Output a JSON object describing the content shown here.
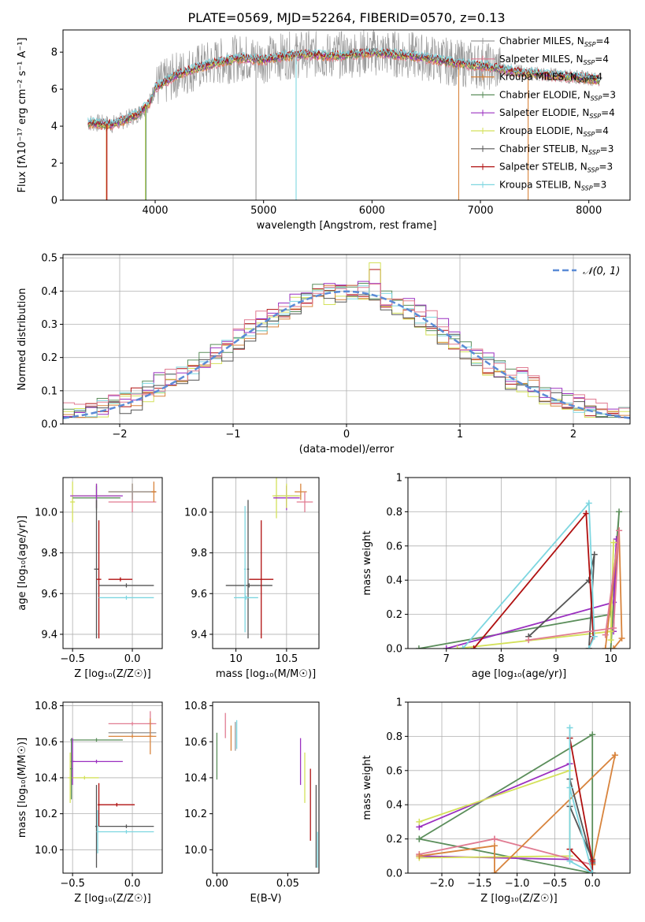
{
  "figure": {
    "title": "PLATE=0569, MJD=52264, FIBERID=0570, z=0.13"
  },
  "colors": {
    "Chabrier MILES": "#9a9a9a",
    "Salpeter MILES": "#e07b91",
    "Kroupa MILES": "#d8843d",
    "Chabrier ELODIE": "#5b8e5b",
    "Salpeter ELODIE": "#9b30c0",
    "Kroupa ELODIE": "#d4e15a",
    "Chabrier STELIB": "#555555",
    "Salpeter STELIB": "#b01010",
    "Kroupa STELIB": "#7dd6e0",
    "normal": "#5b8bd6"
  },
  "chart_data": [
    {
      "id": "spectrum",
      "type": "line",
      "title": "PLATE=0569, MJD=52264, FIBERID=0570, z=0.13",
      "xlabel": "wavelength [Angstrom, rest frame]",
      "ylabel": "Flux [fλ10⁻¹⁷ erg cm⁻² s⁻¹ A⁻¹]",
      "xlim": [
        3150,
        8380
      ],
      "ylim": [
        0,
        9.2
      ],
      "xticks": [
        4000,
        5000,
        6000,
        7000,
        8000
      ],
      "yticks": [
        0,
        2,
        4,
        6,
        8
      ],
      "grid": false,
      "legend_position": "right",
      "legend": [
        {
          "label": "Chabrier MILES",
          "nssp": "4",
          "model": "Chabrier MILES"
        },
        {
          "label": "Salpeter MILES",
          "nssp": "4",
          "model": "Salpeter MILES"
        },
        {
          "label": "Kroupa MILES",
          "nssp": "4",
          "model": "Kroupa MILES"
        },
        {
          "label": "Chabrier ELODIE",
          "nssp": "3",
          "model": "Chabrier ELODIE"
        },
        {
          "label": "Salpeter ELODIE",
          "nssp": "4",
          "model": "Salpeter ELODIE"
        },
        {
          "label": "Kroupa ELODIE",
          "nssp": "4",
          "model": "Kroupa ELODIE"
        },
        {
          "label": "Chabrier STELIB",
          "nssp": "3",
          "model": "Chabrier STELIB"
        },
        {
          "label": "Salpeter STELIB",
          "nssp": "3",
          "model": "Salpeter STELIB"
        },
        {
          "label": "Kroupa STELIB",
          "nssp": "3",
          "model": "Kroupa STELIB"
        }
      ],
      "continuum": {
        "x": [
          3380,
          3600,
          3700,
          3850,
          3950,
          4000,
          4100,
          4200,
          4400,
          4600,
          4800,
          5000,
          5200,
          5400,
          5600,
          5800,
          6000,
          6200,
          6400,
          6600,
          6800,
          7000,
          7200,
          7400,
          7600,
          7800,
          8000,
          8100
        ],
        "y": [
          4.2,
          4.1,
          4.3,
          4.7,
          5.3,
          6.1,
          6.4,
          6.8,
          7.2,
          7.5,
          7.7,
          7.6,
          7.8,
          7.9,
          7.8,
          7.9,
          8.0,
          7.9,
          7.8,
          7.6,
          7.4,
          7.3,
          7.1,
          6.9,
          6.8,
          6.7,
          6.6,
          6.5
        ]
      },
      "drops": [
        {
          "model": "Kroupa MILES",
          "x": 3550,
          "y": 0
        },
        {
          "model": "Salpeter STELIB",
          "x": 3555,
          "y": 0
        },
        {
          "model": "Kroupa ELODIE",
          "x": 3910,
          "y": 0
        },
        {
          "model": "Chabrier ELODIE",
          "x": 3915,
          "y": 0
        },
        {
          "model": "Chabrier MILES",
          "x": 4930,
          "y": 0
        },
        {
          "model": "Kroupa STELIB",
          "x": 5300,
          "y": 0
        },
        {
          "model": "Kroupa MILES",
          "x": 6800,
          "y": 0
        },
        {
          "model": "Kroupa MILES",
          "x": 7440,
          "y": 0
        }
      ]
    },
    {
      "id": "residuals",
      "type": "histogram",
      "xlabel": "(data-model)/error",
      "ylabel": "Normed distribution",
      "xlim": [
        -2.5,
        2.5
      ],
      "ylim": [
        0,
        0.51
      ],
      "xticks": [
        -2,
        -1,
        0,
        1,
        2
      ],
      "yticks": [
        0.0,
        0.1,
        0.2,
        0.3,
        0.4,
        0.5
      ],
      "grid": true,
      "legend_position": "top-right",
      "legend": [
        {
          "label": "𝒩(0, 1)",
          "model": "normal",
          "style": "dashed"
        }
      ],
      "bin_width": 0.1,
      "bins_start": -2.5,
      "series": [
        {
          "model": "Salpeter STELIB",
          "offset": 0.0
        },
        {
          "model": "Chabrier ELODIE",
          "offset": 0.006
        },
        {
          "model": "Kroupa ELODIE",
          "offset": -0.008
        },
        {
          "model": "Salpeter ELODIE",
          "offset": 0.01
        },
        {
          "model": "Kroupa MILES",
          "offset": -0.004
        },
        {
          "model": "Kroupa STELIB",
          "offset": 0.004
        },
        {
          "model": "Chabrier STELIB",
          "offset": -0.012
        },
        {
          "model": "Salpeter MILES",
          "offset": 0.012
        }
      ],
      "peak_bin": {
        "x": 0.25,
        "y": 0.485
      }
    },
    {
      "id": "age_vs_Z",
      "type": "errorbar",
      "xlabel": "Z [log₁₀(Z/Z☉)]",
      "ylabel": "age  [log₁₀(age/yr)]",
      "xlim": [
        -0.58,
        0.25
      ],
      "ylim": [
        9.33,
        10.17
      ],
      "xticks": [
        -0.5,
        0.0
      ],
      "xticklabels": [
        "−0.5",
        "0.0"
      ],
      "yticks": [
        9.4,
        9.6,
        9.8,
        10.0
      ],
      "grid": true,
      "points": [
        {
          "model": "Kroupa ELODIE",
          "x": -0.3,
          "y": 10.08,
          "xerr": 0.2,
          "yerr": 0.06
        },
        {
          "model": "Kroupa ELODIE",
          "x": -0.5,
          "y": 10.05,
          "xerr": 0.02,
          "yerr": 0.1
        },
        {
          "model": "Chabrier ELODIE",
          "x": -0.3,
          "y": 10.07,
          "xerr": 0.2,
          "yerr": 0.06
        },
        {
          "model": "Salpeter ELODIE",
          "x": -0.3,
          "y": 10.08,
          "xerr": 0.22,
          "yerr": 0.06
        },
        {
          "model": "Kroupa MILES",
          "x": 0.0,
          "y": 10.1,
          "xerr": 0.2,
          "yerr": 0.04
        },
        {
          "model": "Salpeter MILES",
          "x": 0.0,
          "y": 10.05,
          "xerr": 0.2,
          "yerr": 0.05
        },
        {
          "model": "Chabrier MILES",
          "x": 0.0,
          "y": 10.1,
          "xerr": 0.2,
          "yerr": 0.04
        },
        {
          "model": "Kroupa MILES",
          "x": 0.18,
          "y": 10.1,
          "xerr": 0.02,
          "yerr": 0.05
        },
        {
          "model": "Chabrier STELIB",
          "x": -0.3,
          "y": 9.72,
          "xerr": 0.02,
          "yerr": 0.34
        },
        {
          "model": "Salpeter STELIB",
          "x": -0.28,
          "y": 9.67,
          "xerr": 0.02,
          "yerr": 0.29
        },
        {
          "model": "Salpeter STELIB",
          "x": -0.1,
          "y": 9.67,
          "xerr": 0.1,
          "yerr": 0.01
        },
        {
          "model": "Chabrier STELIB",
          "x": -0.05,
          "y": 9.64,
          "xerr": 0.23,
          "yerr": 0.01
        },
        {
          "model": "Kroupa STELIB",
          "x": -0.05,
          "y": 9.58,
          "xerr": 0.23,
          "yerr": 0.01
        }
      ]
    },
    {
      "id": "age_vs_mass",
      "type": "errorbar",
      "xlabel": "mass [log₁₀(M/M☉)]",
      "ylabel": "",
      "xlim": [
        9.77,
        10.82
      ],
      "ylim": [
        9.33,
        10.17
      ],
      "xticks": [
        10.0,
        10.5
      ],
      "yticks": [
        9.4,
        9.6,
        9.8,
        10.0
      ],
      "grid": true,
      "points": [
        {
          "model": "Kroupa ELODIE",
          "x": 10.4,
          "y": 10.07,
          "xerr": 0.03,
          "yerr": 0.1
        },
        {
          "model": "Chabrier MILES",
          "x": 10.5,
          "y": 10.08,
          "xerr": 0.12,
          "yerr": 0.05
        },
        {
          "model": "Salpeter ELODIE",
          "x": 10.5,
          "y": 10.07,
          "xerr": 0.13,
          "yerr": 0.06
        },
        {
          "model": "Kroupa ELODIE",
          "x": 10.5,
          "y": 10.08,
          "xerr": 0.14,
          "yerr": 0.06
        },
        {
          "model": "Kroupa MILES",
          "x": 10.64,
          "y": 10.1,
          "xerr": 0.06,
          "yerr": 0.04
        },
        {
          "model": "Salpeter MILES",
          "x": 10.68,
          "y": 10.05,
          "xerr": 0.08,
          "yerr": 0.05
        },
        {
          "model": "Chabrier STELIB",
          "x": 10.13,
          "y": 9.64,
          "xerr": 0.23,
          "yerr": 0.01
        },
        {
          "model": "Chabrier STELIB",
          "x": 10.12,
          "y": 9.72,
          "xerr": 0.01,
          "yerr": 0.34
        },
        {
          "model": "Salpeter STELIB",
          "x": 10.25,
          "y": 9.67,
          "xerr": 0.12,
          "yerr": 0.29
        },
        {
          "model": "Kroupa STELIB",
          "x": 10.1,
          "y": 9.58,
          "xerr": 0.12,
          "yerr": 0.01
        },
        {
          "model": "Kroupa STELIB",
          "x": 10.09,
          "y": 9.72,
          "xerr": 0.01,
          "yerr": 0.31
        }
      ]
    },
    {
      "id": "weight_vs_age",
      "type": "line",
      "xlabel": "age  [log₁₀(age/yr)]",
      "ylabel": "mass weight",
      "xlim": [
        6.3,
        10.35
      ],
      "ylim": [
        0,
        1
      ],
      "xticks": [
        7,
        8,
        9,
        10
      ],
      "yticks": [
        0.0,
        0.2,
        0.4,
        0.6,
        0.8,
        1.0
      ],
      "grid": true,
      "series": [
        {
          "model": "Chabrier ELODIE",
          "x": [
            6.5,
            10.0,
            10.15,
            10.0
          ],
          "y": [
            0.0,
            0.2,
            0.8,
            0.0
          ]
        },
        {
          "model": "Salpeter ELODIE",
          "x": [
            7.0,
            10.05,
            10.1,
            10.05
          ],
          "y": [
            0.0,
            0.27,
            0.64,
            0.1
          ]
        },
        {
          "model": "Kroupa ELODIE",
          "x": [
            7.2,
            10.0,
            10.05,
            10.0
          ],
          "y": [
            0.0,
            0.1,
            0.62,
            0.05
          ]
        },
        {
          "model": "Chabrier STELIB",
          "x": [
            8.5,
            9.6,
            9.7,
            9.6
          ],
          "y": [
            0.07,
            0.4,
            0.55,
            0.0
          ]
        },
        {
          "model": "Salpeter STELIB",
          "x": [
            7.5,
            9.55,
            9.68,
            9.6
          ],
          "y": [
            0.0,
            0.79,
            0.07,
            0.0
          ]
        },
        {
          "model": "Kroupa STELIB",
          "x": [
            7.3,
            9.6,
            9.7,
            9.6
          ],
          "y": [
            0.0,
            0.85,
            0.07,
            0.0
          ]
        },
        {
          "model": "Kroupa MILES",
          "x": [
            9.9,
            10.15,
            10.2,
            10.05
          ],
          "y": [
            0.0,
            0.69,
            0.06,
            0.0
          ]
        },
        {
          "model": "Salpeter MILES",
          "x": [
            8.5,
            10.05,
            10.15,
            9.9
          ],
          "y": [
            0.05,
            0.12,
            0.69,
            0.08
          ]
        }
      ]
    },
    {
      "id": "mass_vs_Z",
      "type": "errorbar",
      "xlabel": "Z [log₁₀(Z/Z☉)]",
      "ylabel": "mass [log₁₀(M/M☉)]",
      "xlim": [
        -0.58,
        0.25
      ],
      "ylim": [
        9.87,
        10.82
      ],
      "xticks": [
        -0.5,
        0.0
      ],
      "xticklabels": [
        "−0.5",
        "0.0"
      ],
      "yticks": [
        10.0,
        10.2,
        10.4,
        10.6,
        10.8
      ],
      "grid": true,
      "points": [
        {
          "model": "Salpeter MILES",
          "x": 0.0,
          "y": 10.7,
          "xerr": 0.2,
          "yerr": 0.01
        },
        {
          "model": "Salpeter MILES",
          "x": 0.15,
          "y": 10.7,
          "xerr": 0.02,
          "yerr": 0.07
        },
        {
          "model": "Chabrier MILES",
          "x": 0.0,
          "y": 10.65,
          "xerr": 0.2,
          "yerr": 0.01
        },
        {
          "model": "Kroupa MILES",
          "x": 0.0,
          "y": 10.63,
          "xerr": 0.2,
          "yerr": 0.01
        },
        {
          "model": "Kroupa MILES",
          "x": 0.15,
          "y": 10.63,
          "xerr": 0.02,
          "yerr": 0.1
        },
        {
          "model": "Chabrier ELODIE",
          "x": -0.3,
          "y": 10.61,
          "xerr": 0.22,
          "yerr": 0.01
        },
        {
          "model": "Salpeter ELODIE",
          "x": -0.3,
          "y": 10.49,
          "xerr": 0.22,
          "yerr": 0.01
        },
        {
          "model": "Kroupa ELODIE",
          "x": -0.4,
          "y": 10.4,
          "xerr": 0.12,
          "yerr": 0.01
        },
        {
          "model": "Salpeter ELODIE",
          "x": -0.5,
          "y": 10.49,
          "xerr": 0.02,
          "yerr": 0.13
        },
        {
          "model": "Kroupa ELODIE",
          "x": -0.52,
          "y": 10.4,
          "xerr": 0.02,
          "yerr": 0.14
        },
        {
          "model": "Chabrier ELODIE",
          "x": -0.51,
          "y": 10.45,
          "xerr": 0.01,
          "yerr": 0.17
        },
        {
          "model": "Salpeter STELIB",
          "x": -0.13,
          "y": 10.25,
          "xerr": 0.15,
          "yerr": 0.01
        },
        {
          "model": "Salpeter STELIB",
          "x": -0.28,
          "y": 10.25,
          "xerr": 0.01,
          "yerr": 0.12
        },
        {
          "model": "Chabrier STELIB",
          "x": -0.05,
          "y": 10.13,
          "xerr": 0.23,
          "yerr": 0.01
        },
        {
          "model": "Chabrier STELIB",
          "x": -0.3,
          "y": 10.13,
          "xerr": 0.01,
          "yerr": 0.23
        },
        {
          "model": "Kroupa STELIB",
          "x": -0.05,
          "y": 10.1,
          "xerr": 0.23,
          "yerr": 0.01
        },
        {
          "model": "Kroupa STELIB",
          "x": -0.29,
          "y": 10.1,
          "xerr": 0.01,
          "yerr": 0.12
        }
      ]
    },
    {
      "id": "mass_vs_ebv",
      "type": "errorbar",
      "xlabel": "E(B-V)",
      "ylabel": "",
      "xlim": [
        -0.003,
        0.072
      ],
      "ylim": [
        9.87,
        10.82
      ],
      "xticks": [
        0.0,
        0.05
      ],
      "xticklabels": [
        "0.00",
        "0.05"
      ],
      "yticks": [
        10.0,
        10.2,
        10.4,
        10.6,
        10.8
      ],
      "grid": false,
      "points": [
        {
          "model": "Chabrier ELODIE",
          "x": 0.0,
          "y": 10.52,
          "xerr": 0,
          "yerr": 0.13
        },
        {
          "model": "Salpeter MILES",
          "x": 0.006,
          "y": 10.69,
          "xerr": 0,
          "yerr": 0.07
        },
        {
          "model": "Kroupa MILES",
          "x": 0.01,
          "y": 10.62,
          "xerr": 0,
          "yerr": 0.07
        },
        {
          "model": "Chabrier MILES",
          "x": 0.013,
          "y": 10.63,
          "xerr": 0,
          "yerr": 0.08
        },
        {
          "model": "Kroupa STELIB",
          "x": 0.014,
          "y": 10.64,
          "xerr": 0,
          "yerr": 0.08
        },
        {
          "model": "Salpeter ELODIE",
          "x": 0.059,
          "y": 10.49,
          "xerr": 0,
          "yerr": 0.13
        },
        {
          "model": "Kroupa ELODIE",
          "x": 0.062,
          "y": 10.4,
          "xerr": 0,
          "yerr": 0.14
        },
        {
          "model": "Salpeter STELIB",
          "x": 0.066,
          "y": 10.25,
          "xerr": 0,
          "yerr": 0.2
        },
        {
          "model": "Chabrier STELIB",
          "x": 0.07,
          "y": 10.13,
          "xerr": 0,
          "yerr": 0.23
        },
        {
          "model": "Kroupa STELIB",
          "x": 0.071,
          "y": 10.0,
          "xerr": 0,
          "yerr": 0.1
        }
      ]
    },
    {
      "id": "weight_vs_Z",
      "type": "line",
      "xlabel": "Z [log₁₀(Z/Z☉)]",
      "ylabel": "mass weight",
      "xlim": [
        -2.45,
        0.5
      ],
      "ylim": [
        0,
        1
      ],
      "xticks": [
        -2.0,
        -1.5,
        -1.0,
        -0.5,
        0.0
      ],
      "xticklabels": [
        "−2.0",
        "−1.5",
        "−1.0",
        "−0.5",
        "0.0"
      ],
      "yticks": [
        0.0,
        0.2,
        0.4,
        0.6,
        0.8,
        1.0
      ],
      "grid": true,
      "series": [
        {
          "model": "Chabrier ELODIE",
          "x": [
            -2.3,
            0.0,
            0.0,
            -2.3
          ],
          "y": [
            0.2,
            0.81,
            0.0,
            0.2
          ]
        },
        {
          "model": "Salpeter ELODIE",
          "x": [
            -2.3,
            -0.3,
            -0.3,
            -2.3
          ],
          "y": [
            0.27,
            0.64,
            0.08,
            0.1
          ]
        },
        {
          "model": "Kroupa ELODIE",
          "x": [
            -2.3,
            -0.3,
            -0.3,
            -2.3
          ],
          "y": [
            0.3,
            0.6,
            0.1,
            0.09
          ]
        },
        {
          "model": "Salpeter MILES",
          "x": [
            -2.3,
            -1.3,
            0.0,
            -1.3,
            -2.3
          ],
          "y": [
            0.11,
            0.2,
            0.05,
            0.2,
            0.11
          ]
        },
        {
          "model": "Kroupa MILES",
          "x": [
            -2.3,
            -1.3,
            -1.3,
            0.3,
            0.0,
            0.3
          ],
          "y": [
            0.1,
            0.16,
            0.0,
            0.69,
            0.05,
            0.69
          ]
        },
        {
          "model": "Chabrier STELIB",
          "x": [
            -0.3,
            0.0,
            0.0,
            -0.3
          ],
          "y": [
            0.55,
            0.06,
            0.08,
            0.39
          ]
        },
        {
          "model": "Salpeter STELIB",
          "x": [
            -0.3,
            0.0,
            0.0,
            -0.3
          ],
          "y": [
            0.79,
            0.07,
            0.0,
            0.14
          ]
        },
        {
          "model": "Kroupa STELIB",
          "x": [
            -0.3,
            -0.3,
            0.0,
            -0.3
          ],
          "y": [
            0.85,
            0.07,
            0.0,
            0.5
          ]
        }
      ]
    }
  ]
}
